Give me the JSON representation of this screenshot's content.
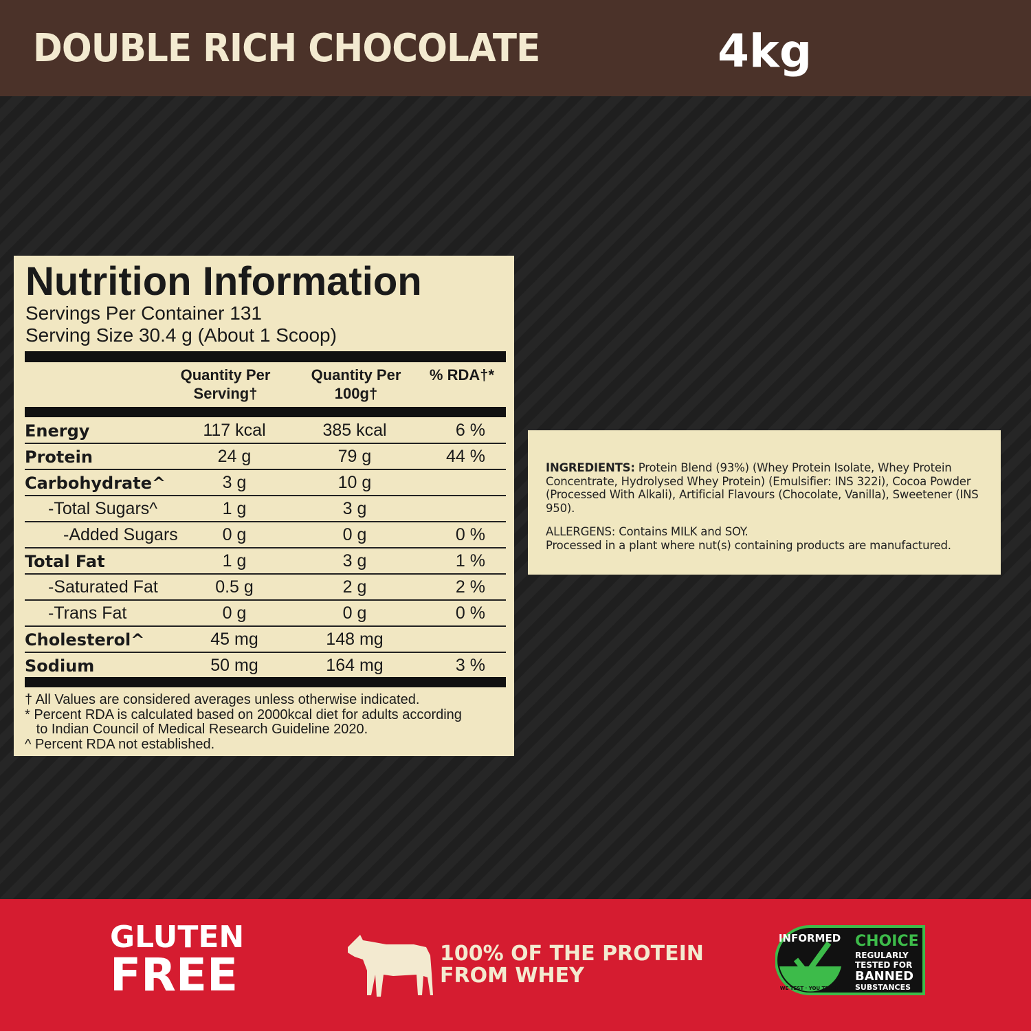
{
  "header": {
    "flavor": "DOUBLE RICH CHOCOLATE",
    "size": "4kg"
  },
  "nutrition": {
    "title": "Nutrition Information",
    "servings_per_container": "Servings Per Container 131",
    "serving_size": "Serving Size 30.4 g (About 1 Scoop)",
    "columns": [
      "Quantity Per Serving†",
      "Quantity Per 100g†",
      "% RDA†*"
    ],
    "rows": [
      {
        "label": "Energy",
        "bold": true,
        "indent": 0,
        "serving": "117 kcal",
        "per100": "385 kcal",
        "rda": "6 %"
      },
      {
        "label": "Protein",
        "bold": true,
        "indent": 0,
        "serving": "24 g",
        "per100": "79 g",
        "rda": "44 %"
      },
      {
        "label": "Carbohydrate^",
        "bold": true,
        "indent": 0,
        "serving": "3 g",
        "per100": "10 g",
        "rda": ""
      },
      {
        "label": "-Total Sugars^",
        "bold": false,
        "indent": 1,
        "serving": "1 g",
        "per100": "3 g",
        "rda": ""
      },
      {
        "label": "-Added Sugars",
        "bold": false,
        "indent": 2,
        "serving": "0 g",
        "per100": "0 g",
        "rda": "0 %"
      },
      {
        "label": "Total Fat",
        "bold": true,
        "indent": 0,
        "serving": "1 g",
        "per100": "3 g",
        "rda": "1 %"
      },
      {
        "label": "-Saturated Fat",
        "bold": false,
        "indent": 1,
        "serving": "0.5 g",
        "per100": "2 g",
        "rda": "2 %"
      },
      {
        "label": "-Trans Fat",
        "bold": false,
        "indent": 1,
        "serving": "0 g",
        "per100": "0 g",
        "rda": "0 %"
      },
      {
        "label": "Cholesterol^",
        "bold": true,
        "indent": 0,
        "serving": "45 mg",
        "per100": "148 mg",
        "rda": ""
      },
      {
        "label": "Sodium",
        "bold": true,
        "indent": 0,
        "serving": "50 mg",
        "per100": "164 mg",
        "rda": "3 %"
      }
    ],
    "notes": [
      "† All Values are considered averages unless otherwise indicated.",
      "* Percent RDA is calculated based on 2000kcal diet for adults according",
      "   to Indian Council of Medical Research Guideline 2020.",
      "^ Percent RDA not established."
    ]
  },
  "ingredients": {
    "label": "INGREDIENTS:",
    "text": "Protein Blend (93%) (Whey Protein Isolate, Whey Protein Concentrate, Hydrolysed Whey Protein) (Emulsifier: INS 322i), Cocoa Powder (Processed With Alkali), Artificial Flavours (Chocolate, Vanilla), Sweetener (INS 950).",
    "allergens": "ALLERGENS: Contains MILK and SOY.",
    "facility": "Processed in a plant where nut(s) containing products are manufactured."
  },
  "footer": {
    "gluten_line1": "GLUTEN",
    "gluten_line2": "FREE",
    "whey_line1": "100% OF THE PROTEIN",
    "whey_line2": "FROM WHEY",
    "badge": {
      "informed": "INFORMED",
      "tagline": "WE TEST · YOU TRUST",
      "choice": "CHOICE",
      "line1": "REGULARLY",
      "line2": "TESTED FOR",
      "line3": "BANNED",
      "line4": "SUBSTANCES"
    },
    "colors": {
      "red": "#d51c30",
      "green": "#3dbb4a",
      "cream": "#f1e7c2",
      "brown": "#4b3229"
    }
  }
}
